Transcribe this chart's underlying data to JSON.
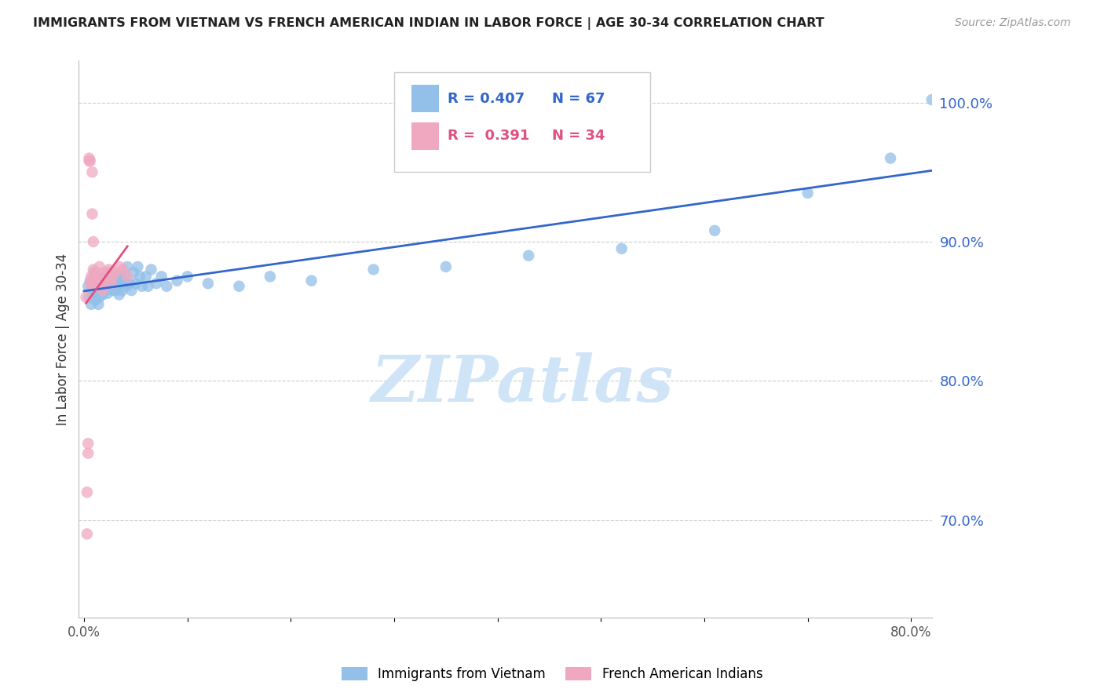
{
  "title": "IMMIGRANTS FROM VIETNAM VS FRENCH AMERICAN INDIAN IN LABOR FORCE | AGE 30-34 CORRELATION CHART",
  "source": "Source: ZipAtlas.com",
  "ylabel": "In Labor Force | Age 30-34",
  "xlim": [
    -0.005,
    0.82
  ],
  "ylim": [
    0.63,
    1.03
  ],
  "xticks": [
    0.0,
    0.1,
    0.2,
    0.3,
    0.4,
    0.5,
    0.6,
    0.7,
    0.8
  ],
  "xticklabels": [
    "0.0%",
    "",
    "",
    "",
    "",
    "",
    "",
    "",
    "80.0%"
  ],
  "yticks_right": [
    0.7,
    0.8,
    0.9,
    1.0
  ],
  "ytick_labels_right": [
    "70.0%",
    "80.0%",
    "90.0%",
    "100.0%"
  ],
  "blue_color": "#92C0E8",
  "pink_color": "#F0A8C0",
  "blue_line_color": "#3366CC",
  "pink_line_color": "#E05080",
  "legend_r_blue": "R = 0.407",
  "legend_n_blue": "N = 67",
  "legend_r_pink": "R =  0.391",
  "legend_n_pink": "N = 34",
  "watermark": "ZIPatlas",
  "watermark_color": "#D0E4F8",
  "legend_label_blue": "Immigrants from Vietnam",
  "legend_label_pink": "French American Indians",
  "blue_scatter_x": [
    0.004,
    0.005,
    0.006,
    0.007,
    0.008,
    0.009,
    0.01,
    0.01,
    0.011,
    0.012,
    0.013,
    0.014,
    0.015,
    0.015,
    0.016,
    0.017,
    0.018,
    0.019,
    0.02,
    0.021,
    0.022,
    0.023,
    0.024,
    0.025,
    0.026,
    0.027,
    0.028,
    0.029,
    0.03,
    0.031,
    0.032,
    0.033,
    0.034,
    0.035,
    0.036,
    0.037,
    0.038,
    0.04,
    0.041,
    0.042,
    0.044,
    0.046,
    0.048,
    0.05,
    0.052,
    0.054,
    0.056,
    0.06,
    0.062,
    0.065,
    0.07,
    0.075,
    0.08,
    0.09,
    0.1,
    0.12,
    0.15,
    0.18,
    0.22,
    0.28,
    0.35,
    0.43,
    0.52,
    0.61,
    0.7,
    0.78,
    0.82
  ],
  "blue_scatter_y": [
    0.868,
    0.86,
    0.872,
    0.855,
    0.865,
    0.87,
    0.863,
    0.878,
    0.858,
    0.872,
    0.868,
    0.855,
    0.875,
    0.86,
    0.865,
    0.87,
    0.862,
    0.868,
    0.873,
    0.865,
    0.87,
    0.863,
    0.878,
    0.872,
    0.868,
    0.875,
    0.865,
    0.87,
    0.872,
    0.865,
    0.868,
    0.875,
    0.862,
    0.87,
    0.876,
    0.865,
    0.872,
    0.875,
    0.868,
    0.882,
    0.87,
    0.865,
    0.878,
    0.87,
    0.882,
    0.875,
    0.868,
    0.875,
    0.868,
    0.88,
    0.87,
    0.875,
    0.868,
    0.872,
    0.875,
    0.87,
    0.868,
    0.875,
    0.872,
    0.88,
    0.882,
    0.89,
    0.895,
    0.908,
    0.935,
    0.96,
    1.002
  ],
  "pink_scatter_x": [
    0.002,
    0.003,
    0.003,
    0.004,
    0.004,
    0.005,
    0.005,
    0.006,
    0.006,
    0.007,
    0.007,
    0.008,
    0.008,
    0.009,
    0.009,
    0.01,
    0.011,
    0.012,
    0.013,
    0.014,
    0.015,
    0.016,
    0.017,
    0.018,
    0.019,
    0.02,
    0.022,
    0.024,
    0.026,
    0.028,
    0.03,
    0.034,
    0.038,
    0.042
  ],
  "pink_scatter_y": [
    0.86,
    0.69,
    0.72,
    0.748,
    0.755,
    0.96,
    0.958,
    0.87,
    0.958,
    0.87,
    0.875,
    0.92,
    0.95,
    0.9,
    0.88,
    0.875,
    0.87,
    0.878,
    0.872,
    0.868,
    0.882,
    0.875,
    0.87,
    0.865,
    0.872,
    0.878,
    0.875,
    0.88,
    0.87,
    0.875,
    0.878,
    0.882,
    0.88,
    0.875
  ]
}
